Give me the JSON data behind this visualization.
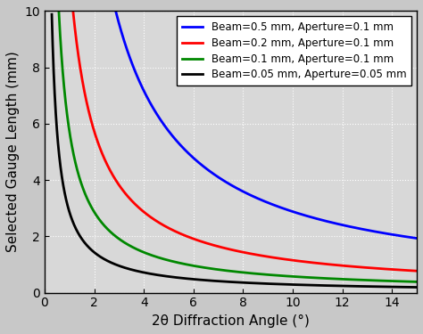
{
  "title": "",
  "xlabel": "2θ Diffraction Angle (°)",
  "ylabel": "Selected Gauge Length (mm)",
  "xlim": [
    0,
    15
  ],
  "ylim": [
    0,
    10
  ],
  "xticks": [
    0,
    2,
    4,
    6,
    8,
    10,
    12,
    14
  ],
  "yticks": [
    0,
    2,
    4,
    6,
    8,
    10
  ],
  "curves": [
    {
      "beam": 0.5,
      "aperture": 0.1,
      "color": "#0000ff",
      "label": "Beam=0.5 mm, Aperture=0.1 mm"
    },
    {
      "beam": 0.2,
      "aperture": 0.1,
      "color": "#ff0000",
      "label": "Beam=0.2 mm, Aperture=0.1 mm"
    },
    {
      "beam": 0.1,
      "aperture": 0.1,
      "color": "#008800",
      "label": "Beam=0.1 mm, Aperture=0.1 mm"
    },
    {
      "beam": 0.05,
      "aperture": 0.05,
      "color": "#000000",
      "label": "Beam=0.05 mm, Aperture=0.05 mm"
    }
  ],
  "plot_bg_color": "#d8d8d8",
  "fig_bg_color": "#c8c8c8",
  "grid_color": "#ffffff",
  "legend_fontsize": 8.5,
  "axis_fontsize": 11,
  "tick_fontsize": 10,
  "linewidth": 2.0
}
